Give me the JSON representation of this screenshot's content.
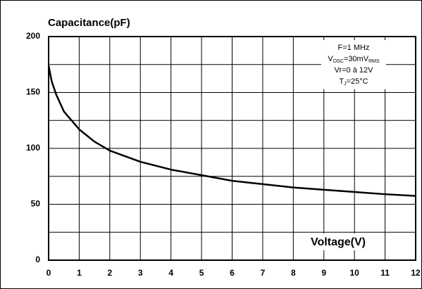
{
  "chart_data": {
    "type": "line",
    "title": "Capacitance(pF)",
    "x_label": "Voltage(V)",
    "annotation_lines": [
      [
        "F=1 MHz"
      ],
      [
        "V",
        "OSC",
        "=30mV",
        "RMS"
      ],
      [
        "Vr=0 à 12V"
      ],
      [
        "T",
        "J",
        "=25°C"
      ]
    ],
    "x": [
      0,
      0.1,
      0.25,
      0.5,
      1,
      1.5,
      2,
      3,
      4,
      5,
      6,
      7,
      8,
      9,
      10,
      11,
      12
    ],
    "series": [
      {
        "name": "Capacitance",
        "color": "#000000",
        "values": [
          174,
          160,
          148,
          133,
          117,
          106,
          98,
          88,
          81,
          76,
          71,
          68,
          65,
          63,
          61,
          59,
          57.5
        ]
      }
    ],
    "xlim": [
      0,
      12
    ],
    "xticks": [
      0,
      1,
      2,
      3,
      4,
      5,
      6,
      7,
      8,
      9,
      10,
      11,
      12
    ],
    "ylim": [
      0,
      200
    ],
    "yticks": [
      0,
      50,
      100,
      150,
      200
    ],
    "yminor_ticks": [
      25,
      75,
      125,
      175
    ],
    "grid": true
  }
}
